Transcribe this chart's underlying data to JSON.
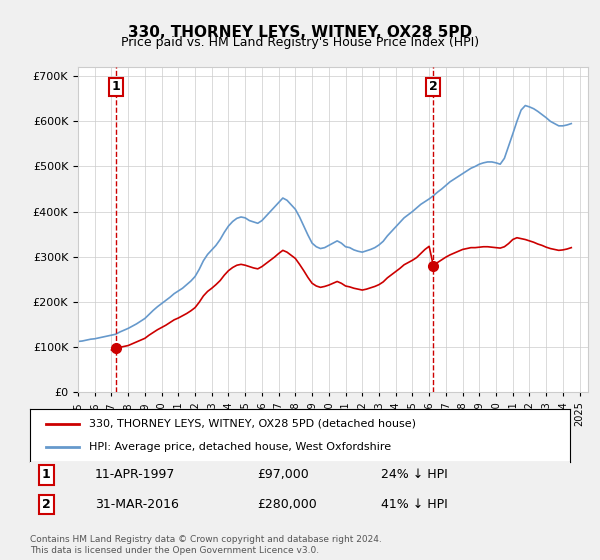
{
  "title": "330, THORNEY LEYS, WITNEY, OX28 5PD",
  "subtitle": "Price paid vs. HM Land Registry's House Price Index (HPI)",
  "ylabel_ticks": [
    "£0",
    "£100K",
    "£200K",
    "£300K",
    "£400K",
    "£500K",
    "£600K",
    "£700K"
  ],
  "ytick_values": [
    0,
    100000,
    200000,
    300000,
    400000,
    500000,
    600000,
    700000
  ],
  "ylim": [
    0,
    720000
  ],
  "xlim_start": 1995.0,
  "xlim_end": 2025.5,
  "purchase1_x": 1997.27,
  "purchase1_y": 97000,
  "purchase1_label": "1",
  "purchase1_date": "11-APR-1997",
  "purchase1_price": "£97,000",
  "purchase1_hpi": "24% ↓ HPI",
  "purchase2_x": 2016.25,
  "purchase2_y": 280000,
  "purchase2_label": "2",
  "purchase2_date": "31-MAR-2016",
  "purchase2_price": "£280,000",
  "purchase2_hpi": "41% ↓ HPI",
  "legend_label1": "330, THORNEY LEYS, WITNEY, OX28 5PD (detached house)",
  "legend_label2": "HPI: Average price, detached house, West Oxfordshire",
  "footer1": "Contains HM Land Registry data © Crown copyright and database right 2024.",
  "footer2": "This data is licensed under the Open Government Licence v3.0.",
  "price_color": "#cc0000",
  "hpi_color": "#6699cc",
  "background_color": "#f0f0f0",
  "plot_bg_color": "#ffffff",
  "vline_color": "#cc0000",
  "marker_color": "#cc0000",
  "hpi_data_x": [
    1995.0,
    1995.25,
    1995.5,
    1995.75,
    1996.0,
    1996.25,
    1996.5,
    1996.75,
    1997.0,
    1997.25,
    1997.5,
    1997.75,
    1998.0,
    1998.25,
    1998.5,
    1998.75,
    1999.0,
    1999.25,
    1999.5,
    1999.75,
    2000.0,
    2000.25,
    2000.5,
    2000.75,
    2001.0,
    2001.25,
    2001.5,
    2001.75,
    2002.0,
    2002.25,
    2002.5,
    2002.75,
    2003.0,
    2003.25,
    2003.5,
    2003.75,
    2004.0,
    2004.25,
    2004.5,
    2004.75,
    2005.0,
    2005.25,
    2005.5,
    2005.75,
    2006.0,
    2006.25,
    2006.5,
    2006.75,
    2007.0,
    2007.25,
    2007.5,
    2007.75,
    2008.0,
    2008.25,
    2008.5,
    2008.75,
    2009.0,
    2009.25,
    2009.5,
    2009.75,
    2010.0,
    2010.25,
    2010.5,
    2010.75,
    2011.0,
    2011.25,
    2011.5,
    2011.75,
    2012.0,
    2012.25,
    2012.5,
    2012.75,
    2013.0,
    2013.25,
    2013.5,
    2013.75,
    2014.0,
    2014.25,
    2014.5,
    2014.75,
    2015.0,
    2015.25,
    2015.5,
    2015.75,
    2016.0,
    2016.25,
    2016.5,
    2016.75,
    2017.0,
    2017.25,
    2017.5,
    2017.75,
    2018.0,
    2018.25,
    2018.5,
    2018.75,
    2019.0,
    2019.25,
    2019.5,
    2019.75,
    2020.0,
    2020.25,
    2020.5,
    2020.75,
    2021.0,
    2021.25,
    2021.5,
    2021.75,
    2022.0,
    2022.25,
    2022.5,
    2022.75,
    2023.0,
    2023.25,
    2023.5,
    2023.75,
    2024.0,
    2024.25,
    2024.5
  ],
  "hpi_data_y": [
    112000,
    113000,
    115000,
    117000,
    118000,
    120000,
    122000,
    124000,
    126000,
    128000,
    133000,
    137000,
    141000,
    146000,
    151000,
    157000,
    163000,
    172000,
    181000,
    189000,
    196000,
    203000,
    210000,
    218000,
    224000,
    230000,
    238000,
    246000,
    256000,
    272000,
    291000,
    305000,
    315000,
    325000,
    338000,
    354000,
    368000,
    378000,
    385000,
    388000,
    386000,
    380000,
    377000,
    374000,
    380000,
    390000,
    400000,
    410000,
    420000,
    430000,
    425000,
    415000,
    405000,
    388000,
    368000,
    348000,
    330000,
    322000,
    318000,
    320000,
    325000,
    330000,
    335000,
    330000,
    322000,
    320000,
    315000,
    312000,
    310000,
    313000,
    316000,
    320000,
    326000,
    334000,
    346000,
    356000,
    366000,
    376000,
    386000,
    393000,
    400000,
    408000,
    416000,
    422000,
    428000,
    435000,
    443000,
    450000,
    458000,
    466000,
    472000,
    478000,
    484000,
    490000,
    496000,
    500000,
    505000,
    508000,
    510000,
    510000,
    508000,
    505000,
    518000,
    545000,
    572000,
    600000,
    625000,
    635000,
    632000,
    628000,
    622000,
    615000,
    608000,
    600000,
    595000,
    590000,
    590000,
    592000,
    595000
  ],
  "price_data_x": [
    1997.0,
    1997.27,
    1997.5,
    1997.75,
    1998.0,
    1998.25,
    1998.5,
    1998.75,
    1999.0,
    1999.25,
    1999.5,
    1999.75,
    2000.0,
    2000.25,
    2000.5,
    2000.75,
    2001.0,
    2001.25,
    2001.5,
    2001.75,
    2002.0,
    2002.25,
    2002.5,
    2002.75,
    2003.0,
    2003.25,
    2003.5,
    2003.75,
    2004.0,
    2004.25,
    2004.5,
    2004.75,
    2005.0,
    2005.25,
    2005.5,
    2005.75,
    2006.0,
    2006.25,
    2006.5,
    2006.75,
    2007.0,
    2007.25,
    2007.5,
    2007.75,
    2008.0,
    2008.25,
    2008.5,
    2008.75,
    2009.0,
    2009.25,
    2009.5,
    2009.75,
    2010.0,
    2010.25,
    2010.5,
    2010.75,
    2011.0,
    2011.25,
    2011.5,
    2011.75,
    2012.0,
    2012.25,
    2012.5,
    2012.75,
    2013.0,
    2013.25,
    2013.5,
    2013.75,
    2014.0,
    2014.25,
    2014.5,
    2014.75,
    2015.0,
    2015.25,
    2015.5,
    2015.75,
    2016.0,
    2016.25,
    2016.5,
    2016.75,
    2017.0,
    2017.25,
    2017.5,
    2017.75,
    2018.0,
    2018.25,
    2018.5,
    2018.75,
    2019.0,
    2019.25,
    2019.5,
    2019.75,
    2020.0,
    2020.25,
    2020.5,
    2020.75,
    2021.0,
    2021.25,
    2021.5,
    2021.75,
    2022.0,
    2022.25,
    2022.5,
    2022.75,
    2023.0,
    2023.25,
    2023.5,
    2023.75,
    2024.0,
    2024.25,
    2024.5
  ],
  "price_data_y": [
    93000,
    97000,
    99000,
    101000,
    103000,
    107000,
    111000,
    115000,
    119000,
    126000,
    132000,
    138000,
    143000,
    148000,
    154000,
    160000,
    164000,
    169000,
    174000,
    180000,
    187000,
    199000,
    213000,
    223000,
    230000,
    238000,
    247000,
    259000,
    269000,
    276000,
    281000,
    283000,
    281000,
    278000,
    275000,
    273000,
    278000,
    285000,
    292000,
    299000,
    307000,
    314000,
    310000,
    303000,
    296000,
    283000,
    269000,
    254000,
    241000,
    235000,
    232000,
    234000,
    237000,
    241000,
    245000,
    241000,
    235000,
    233000,
    230000,
    228000,
    226000,
    228000,
    231000,
    234000,
    238000,
    244000,
    253000,
    260000,
    267000,
    274000,
    282000,
    287000,
    292000,
    298000,
    307000,
    316000,
    323000,
    280000,
    287000,
    293000,
    299000,
    304000,
    308000,
    312000,
    316000,
    318000,
    320000,
    320000,
    321000,
    322000,
    322000,
    321000,
    320000,
    319000,
    322000,
    329000,
    338000,
    342000,
    340000,
    338000,
    335000,
    332000,
    328000,
    325000,
    321000,
    318000,
    316000,
    314000,
    315000,
    317000,
    320000
  ]
}
